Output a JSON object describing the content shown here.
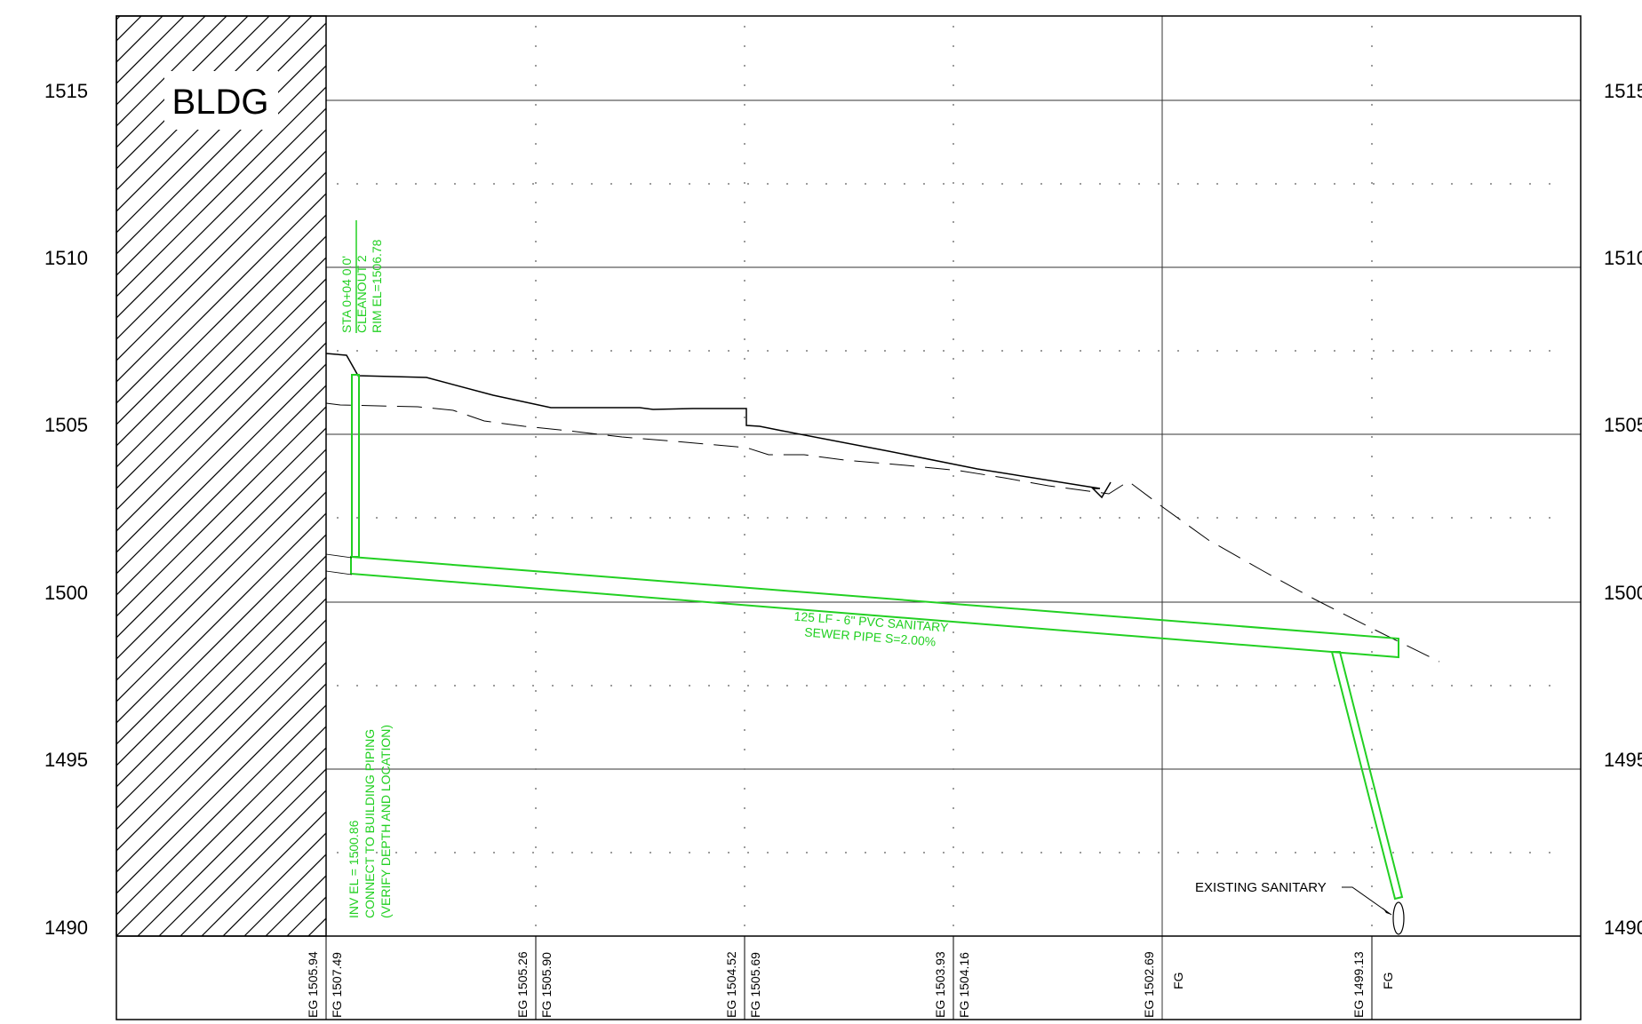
{
  "building_label": "BLDG",
  "elevations": [
    "1515",
    "1510",
    "1505",
    "1500",
    "1495",
    "1490"
  ],
  "cleanout": {
    "line1": "STA 0+04  0.0'",
    "line2": "CLEANOUT 2",
    "line3": "RIM EL=1506.78"
  },
  "invert_note": {
    "line1": "INV EL = 1500.86",
    "line2": "CONNECT TO BUILDING PIPING",
    "line3": "(VERIFY DEPTH AND LOCATION)"
  },
  "pipe_note": {
    "line1": "125 LF - 6\" PVC SANITARY",
    "line2": "SEWER PIPE  S=2.00%"
  },
  "existing_label": "EXISTING SANITARY",
  "stations": [
    {
      "eg": "EG 1505.94",
      "fg": "FG 1507.49"
    },
    {
      "eg": "EG 1505.26",
      "fg": "FG 1505.90"
    },
    {
      "eg": "EG 1504.52",
      "fg": "FG 1505.69"
    },
    {
      "eg": "EG 1503.93",
      "fg": "FG 1504.16"
    },
    {
      "eg": "EG 1502.69",
      "fg": "FG"
    },
    {
      "eg": "EG 1499.13",
      "fg": "FG"
    }
  ],
  "colors": {
    "pipe": "#22d022",
    "grid": "#000000",
    "text": "#000000"
  }
}
